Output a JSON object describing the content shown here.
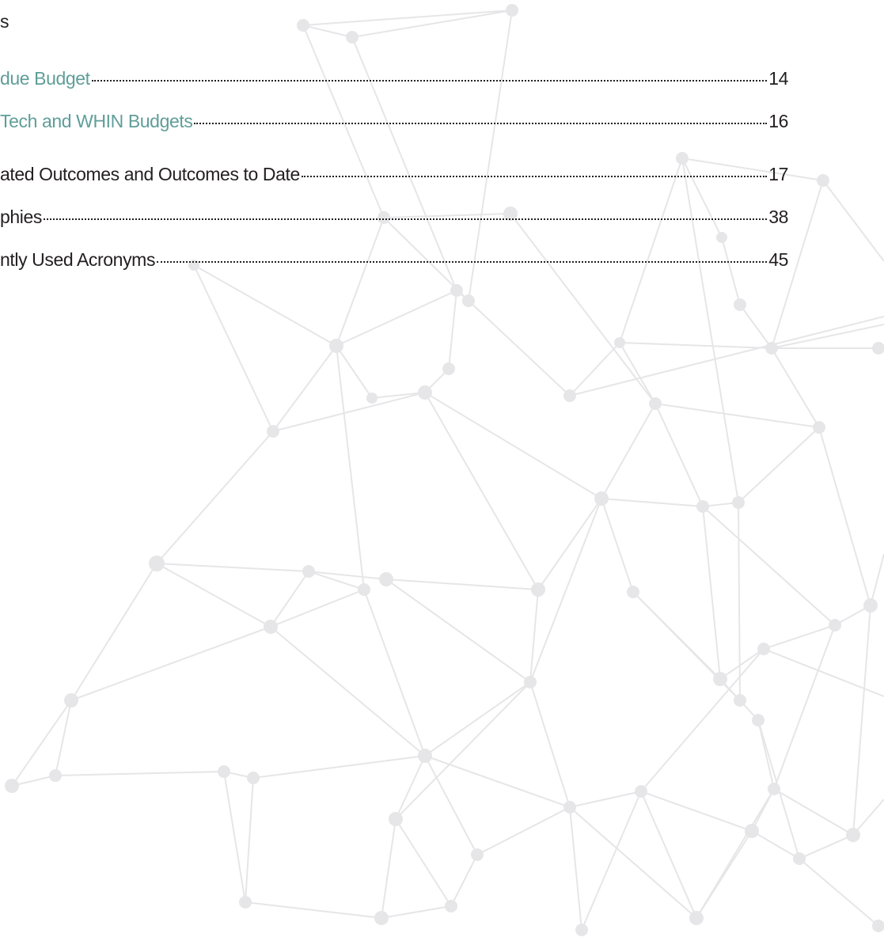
{
  "toc": {
    "heading": "s",
    "entries": [
      {
        "text": "due Budget",
        "page": "14"
      },
      {
        "text": "Tech and WHIN Budgets",
        "page": "16"
      },
      {
        "text": "ated Outcomes and Outcomes to Date",
        "page": "17"
      },
      {
        "text": "phies",
        "page": "38"
      },
      {
        "text": "ntly Used Acronyms",
        "page": "45"
      }
    ]
  }
}
